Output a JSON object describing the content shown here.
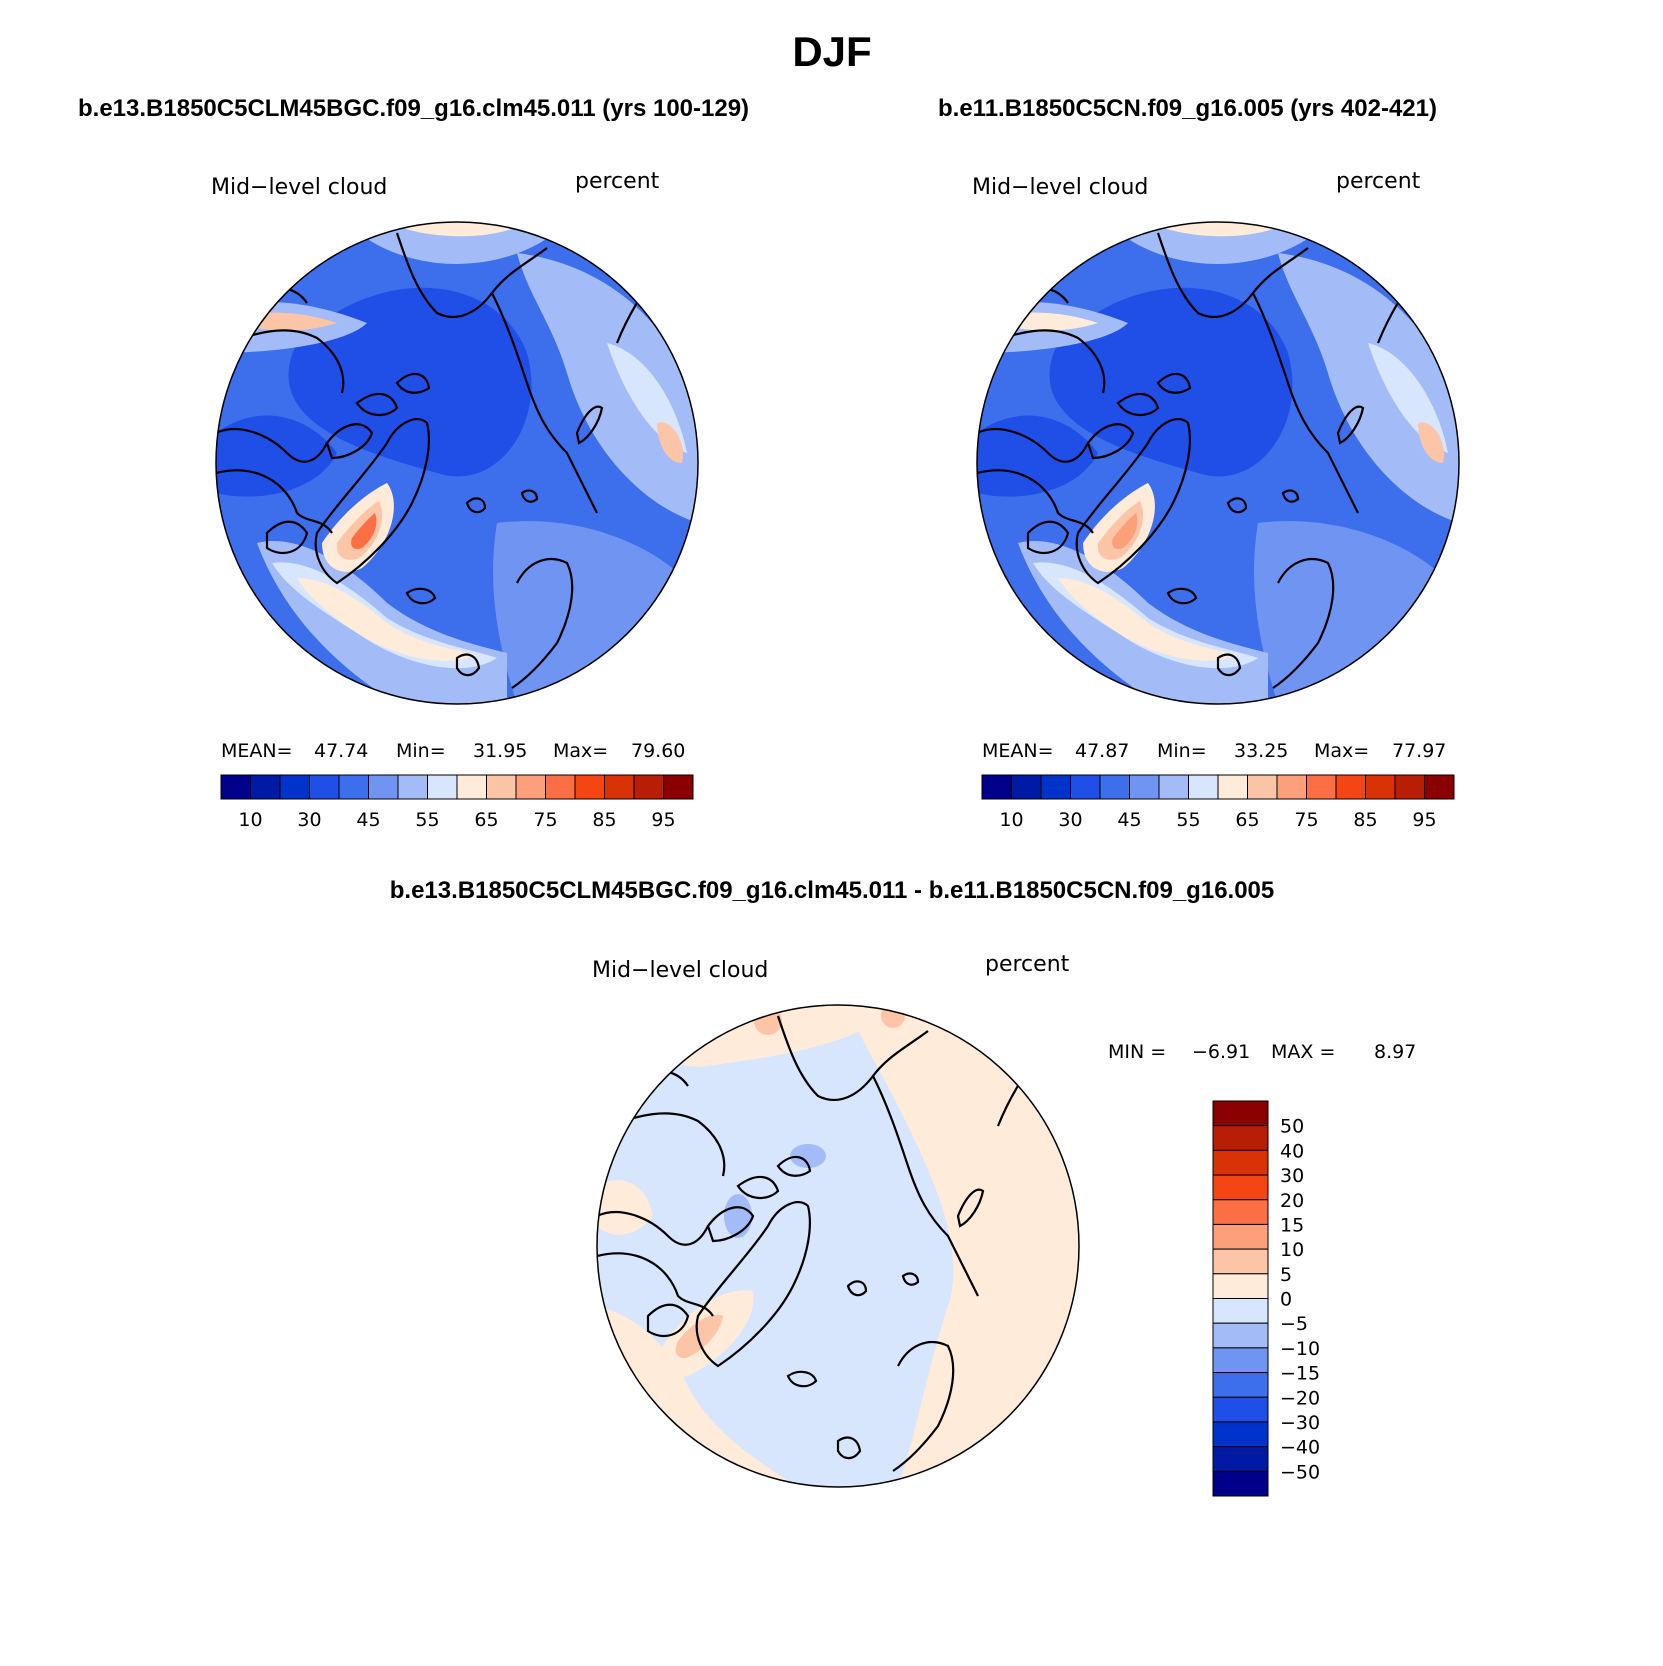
{
  "title": "DJF",
  "panels": [
    {
      "case_title": "b.e13.B1850C5CLM45BGC.f09_g16.clm45.011 (yrs 100-129)",
      "variable_label": "Mid−level cloud",
      "units_label": "percent",
      "stats": {
        "mean_label": "MEAN=",
        "mean": "47.74",
        "min_label": "Min=",
        "min": "31.95",
        "max_label": "Max=",
        "max": "79.60"
      }
    },
    {
      "case_title": "b.e11.B1850C5CN.f09_g16.005 (yrs 402-421)",
      "variable_label": "Mid−level cloud",
      "units_label": "percent",
      "stats": {
        "mean_label": "MEAN=",
        "mean": "47.87",
        "min_label": "Min=",
        "min": "33.25",
        "max_label": "Max=",
        "max": "77.97"
      }
    }
  ],
  "diff_panel": {
    "case_title": "b.e13.B1850C5CLM45BGC.f09_g16.clm45.011 - b.e11.B1850C5CN.f09_g16.005",
    "variable_label": "Mid−level cloud",
    "units_label": "percent",
    "stats": {
      "min_label": "MIN =",
      "min": "−6.91",
      "max_label": "MAX =",
      "max": "8.97"
    }
  },
  "colorbar_abs": {
    "colors": [
      "#00008b",
      "#001aa6",
      "#0033cc",
      "#1f4fe6",
      "#3d6fed",
      "#6f94f2",
      "#a3bcf8",
      "#d7e6fc",
      "#feebd9",
      "#fdc5a8",
      "#fc9f7b",
      "#fc6e44",
      "#f64514",
      "#d93207",
      "#b81e05",
      "#8b0000"
    ],
    "tick_labels": [
      "10",
      "30",
      "45",
      "55",
      "65",
      "75",
      "85",
      "95"
    ]
  },
  "colorbar_diff": {
    "colors": [
      "#8b0000",
      "#b81e05",
      "#d93207",
      "#f64514",
      "#fc6e44",
      "#fc9f7b",
      "#fdc5a8",
      "#feebd9",
      "#d7e6fc",
      "#a3bcf8",
      "#6f94f2",
      "#3d6fed",
      "#1f4fe6",
      "#0033cc",
      "#001aa6",
      "#00008b"
    ],
    "tick_labels": [
      "50",
      "40",
      "30",
      "20",
      "15",
      "10",
      "5",
      "0",
      "−5",
      "−10",
      "−15",
      "−20",
      "−30",
      "−40",
      "−50"
    ]
  },
  "map_colors": {
    "blue_dark": "#1f4fe6",
    "blue_mid": "#3d6fed",
    "blue_light": "#6f94f2",
    "blue_pale": "#a3bcf8",
    "blue_very_pale": "#d7e6fc",
    "peach": "#feebd9",
    "salmon": "#fdc5a8",
    "orange": "#fc6e44"
  }
}
